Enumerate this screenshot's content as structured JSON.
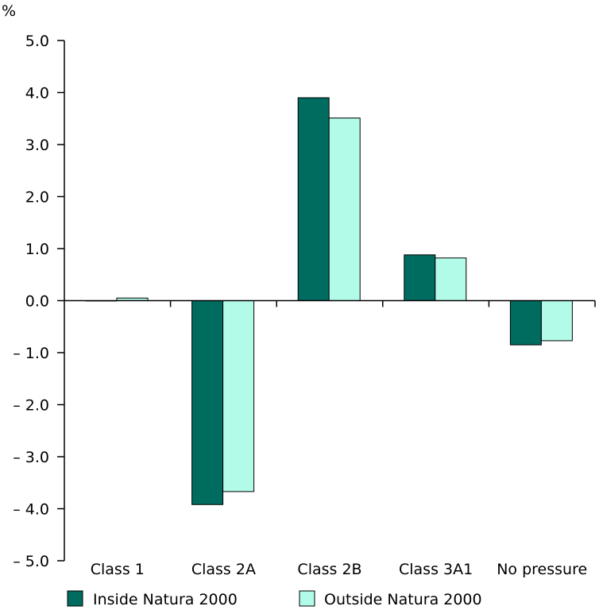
{
  "chart_data": {
    "type": "bar",
    "unit_label": "%",
    "categories": [
      "Class 1",
      "Class 2A",
      "Class 2B",
      "Class 3A1",
      "No pressure"
    ],
    "series": [
      {
        "name": "Inside Natura 2000",
        "color": "#006b5f",
        "values": [
          0.0,
          -3.92,
          3.9,
          0.88,
          -0.85
        ]
      },
      {
        "name": "Outside Natura 2000",
        "color": "#b3fbe9",
        "values": [
          0.05,
          -3.67,
          3.51,
          0.82,
          -0.77
        ]
      }
    ],
    "ylim": [
      -5.0,
      5.0
    ],
    "ytick_values": [
      5,
      4,
      3,
      2,
      1,
      0,
      -1,
      -2,
      -3,
      -4,
      -5
    ],
    "ytick_labels": [
      "5.0",
      "4.0",
      "3.0",
      "2.0",
      "1.0",
      "0.0",
      "– 1.0",
      "– 2.0",
      "– 3.0",
      "– 4.0",
      "– 5.0"
    ],
    "grid": false,
    "legend_position": "bottom-left"
  }
}
